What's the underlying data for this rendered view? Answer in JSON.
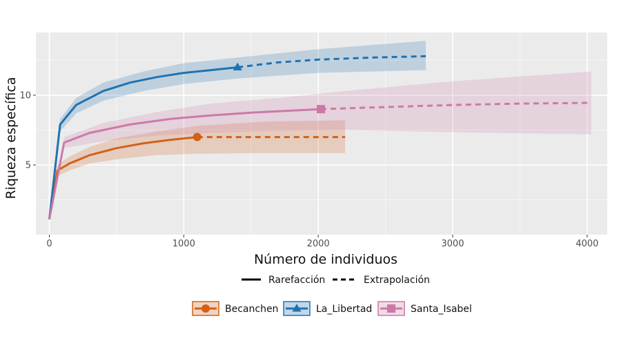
{
  "chart_data": {
    "type": "line",
    "xlabel": "Número de individuos",
    "ylabel": "Riqueza específica",
    "xlim": [
      -100,
      4150
    ],
    "ylim": [
      0,
      14.5
    ],
    "x_ticks": [
      0,
      1000,
      2000,
      3000,
      4000
    ],
    "y_ticks": [
      5,
      10
    ],
    "x_tick_labels": [
      "0",
      "1000",
      "2000",
      "3000",
      "4000"
    ],
    "y_tick_labels": [
      "5",
      "10"
    ],
    "grid": true,
    "linetype_legend": {
      "rarefaction_label": "Rarefacción",
      "extrapolation_label": "Extrapolación"
    },
    "series": [
      {
        "name": "Becanchen",
        "color": "#d2601a",
        "marker": "circle",
        "observed": [
          1100,
          7.0
        ],
        "rarefaction": [
          [
            0,
            1.1
          ],
          [
            60,
            4.6
          ],
          [
            150,
            5.1
          ],
          [
            300,
            5.7
          ],
          [
            500,
            6.2
          ],
          [
            700,
            6.55
          ],
          [
            900,
            6.8
          ],
          [
            1100,
            7.0
          ]
        ],
        "extrapolation": [
          [
            1100,
            7.0
          ],
          [
            1500,
            7.0
          ],
          [
            2200,
            7.0
          ]
        ],
        "ci_lower": [
          [
            0,
            1.1
          ],
          [
            60,
            4.2
          ],
          [
            150,
            4.6
          ],
          [
            300,
            5.1
          ],
          [
            500,
            5.4
          ],
          [
            800,
            5.7
          ],
          [
            1100,
            5.8
          ],
          [
            1600,
            5.85
          ],
          [
            2200,
            5.85
          ]
        ],
        "ci_upper": [
          [
            0,
            1.1
          ],
          [
            60,
            5.0
          ],
          [
            150,
            5.6
          ],
          [
            300,
            6.3
          ],
          [
            500,
            6.9
          ],
          [
            800,
            7.4
          ],
          [
            1100,
            7.8
          ],
          [
            1600,
            8.1
          ],
          [
            2200,
            8.2
          ]
        ]
      },
      {
        "name": "La_Libertad",
        "color": "#1f72b0",
        "marker": "triangle",
        "observed": [
          1400,
          12.0
        ],
        "rarefaction": [
          [
            0,
            1.1
          ],
          [
            80,
            7.9
          ],
          [
            200,
            9.3
          ],
          [
            400,
            10.3
          ],
          [
            600,
            10.9
          ],
          [
            800,
            11.3
          ],
          [
            1000,
            11.6
          ],
          [
            1200,
            11.8
          ],
          [
            1400,
            12.0
          ]
        ],
        "extrapolation": [
          [
            1400,
            12.0
          ],
          [
            1700,
            12.35
          ],
          [
            2000,
            12.55
          ],
          [
            2400,
            12.7
          ],
          [
            2800,
            12.8
          ]
        ],
        "ci_lower": [
          [
            0,
            1.1
          ],
          [
            80,
            7.4
          ],
          [
            200,
            8.7
          ],
          [
            400,
            9.6
          ],
          [
            700,
            10.3
          ],
          [
            1000,
            10.8
          ],
          [
            1400,
            11.2
          ],
          [
            2000,
            11.6
          ],
          [
            2800,
            11.8
          ]
        ],
        "ci_upper": [
          [
            0,
            1.1
          ],
          [
            80,
            8.3
          ],
          [
            200,
            9.8
          ],
          [
            400,
            10.9
          ],
          [
            700,
            11.7
          ],
          [
            1000,
            12.3
          ],
          [
            1400,
            12.7
          ],
          [
            2000,
            13.3
          ],
          [
            2800,
            13.9
          ]
        ]
      },
      {
        "name": "Santa_Isabel",
        "color": "#cc79a7",
        "marker": "square",
        "observed": [
          2020,
          9.0
        ],
        "rarefaction": [
          [
            0,
            1.1
          ],
          [
            110,
            6.6
          ],
          [
            300,
            7.3
          ],
          [
            600,
            7.9
          ],
          [
            900,
            8.3
          ],
          [
            1200,
            8.55
          ],
          [
            1500,
            8.75
          ],
          [
            1800,
            8.9
          ],
          [
            2020,
            9.0
          ]
        ],
        "extrapolation": [
          [
            2020,
            9.0
          ],
          [
            2500,
            9.15
          ],
          [
            3000,
            9.3
          ],
          [
            3500,
            9.4
          ],
          [
            4030,
            9.45
          ]
        ],
        "ci_lower": [
          [
            0,
            1.1
          ],
          [
            110,
            6.2
          ],
          [
            400,
            6.7
          ],
          [
            800,
            7.1
          ],
          [
            1200,
            7.3
          ],
          [
            1700,
            7.45
          ],
          [
            2200,
            7.5
          ],
          [
            3000,
            7.35
          ],
          [
            4030,
            7.2
          ]
        ],
        "ci_upper": [
          [
            0,
            1.1
          ],
          [
            110,
            7.0
          ],
          [
            400,
            8.0
          ],
          [
            800,
            8.8
          ],
          [
            1200,
            9.4
          ],
          [
            1700,
            9.8
          ],
          [
            2200,
            10.3
          ],
          [
            3000,
            11.0
          ],
          [
            4030,
            11.7
          ]
        ]
      }
    ]
  }
}
